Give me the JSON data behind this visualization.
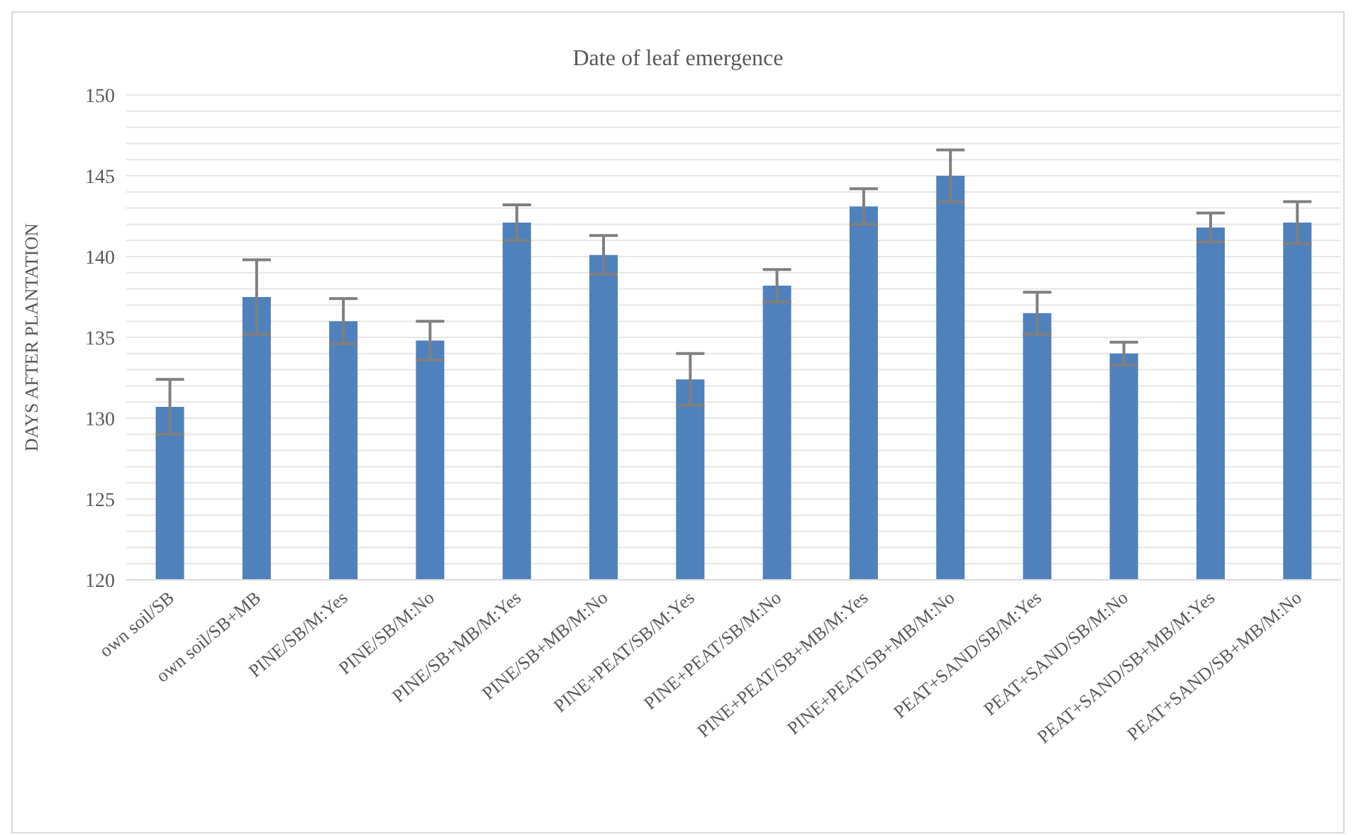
{
  "chart_data": {
    "type": "bar",
    "title": "Date of leaf emergence",
    "ylabel": "DAYS AFTER PLANTATION",
    "categories": [
      "own soil/SB",
      "own soil/SB+MB",
      "PINE/SB/M:Yes",
      "PINE/SB/M:No",
      "PINE/SB+MB/M:Yes",
      "PINE/SB+MB/M:No",
      "PINE+PEAT/SB/M:Yes",
      "PINE+PEAT/SB/M:No",
      "PINE+PEAT/SB+MB/M:Yes",
      "PINE+PEAT/SB+MB/M:No",
      "PEAT+SAND/SB/M:Yes",
      "PEAT+SAND/SB/M:No",
      "PEAT+SAND/SB+MB/M:Yes",
      "PEAT+SAND/SB+MB/M:No"
    ],
    "values": [
      130.7,
      137.5,
      136.0,
      134.8,
      142.1,
      140.1,
      132.4,
      138.2,
      143.1,
      145.0,
      136.5,
      134.0,
      141.8,
      142.1
    ],
    "errors": [
      1.7,
      2.3,
      1.4,
      1.2,
      1.1,
      1.2,
      1.6,
      1.0,
      1.1,
      1.6,
      1.3,
      0.7,
      0.9,
      1.3
    ],
    "color": "#4f81bd",
    "ylim": [
      120,
      150
    ],
    "yticks": [
      120,
      {
        "value": 121,
        "label": null
      },
      {
        "value": 122,
        "label": null
      },
      {
        "value": 123,
        "label": null
      },
      {
        "value": 124,
        "label": null
      },
      125,
      {
        "value": 126,
        "label": null
      },
      {
        "value": 127,
        "label": null
      },
      {
        "value": 128,
        "label": null
      },
      {
        "value": 129,
        "label": null
      },
      130,
      {
        "value": 131,
        "label": null
      },
      {
        "value": 132,
        "label": null
      },
      {
        "value": 133,
        "label": null
      },
      {
        "value": 134,
        "label": null
      },
      135,
      {
        "value": 136,
        "label": null
      },
      {
        "value": 137,
        "label": null
      },
      {
        "value": 138,
        "label": null
      },
      {
        "value": 139,
        "label": null
      },
      140,
      {
        "value": 141,
        "label": null
      },
      {
        "value": 142,
        "label": null
      },
      {
        "value": 143,
        "label": null
      },
      {
        "value": 144,
        "label": null
      },
      145,
      {
        "value": 146,
        "label": null
      },
      {
        "value": 147,
        "label": null
      },
      {
        "value": 148,
        "label": null
      },
      {
        "value": 149,
        "label": null
      },
      150
    ],
    "grid": "y",
    "legend": false
  }
}
